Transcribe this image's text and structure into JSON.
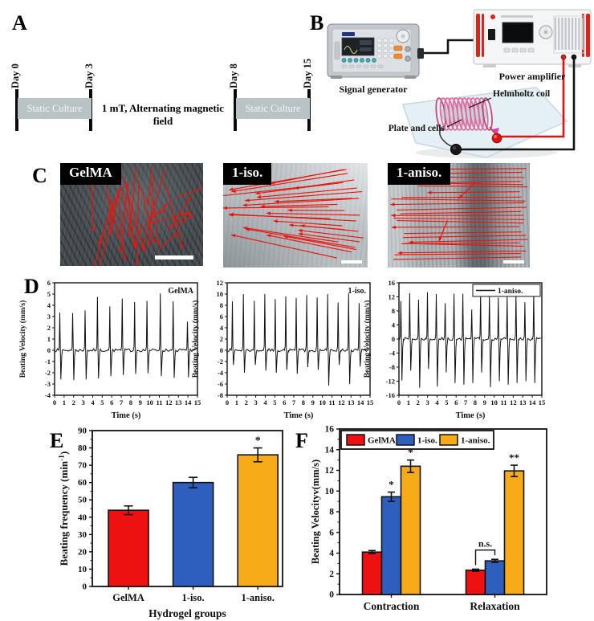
{
  "panel_labels": {
    "a": "A",
    "b": "B",
    "c": "C",
    "d": "D",
    "e": "E",
    "f": "F"
  },
  "panel_a": {
    "days": [
      "Day 0",
      "Day 3",
      "Day 8",
      "Day 15"
    ],
    "segments": [
      {
        "label": "Static Culture"
      },
      {
        "label": "Static Culture"
      }
    ],
    "field_label": "1 mT, Alternating magnetic field",
    "band_color": "#b9c3c6"
  },
  "panel_b": {
    "signal_generator_label": "Signal generator",
    "power_amplifier_label": "Power amplifier",
    "helmholtz_coil_label": "Helmholtz coil",
    "plate_and_cells_label": "Plate and cells",
    "wire_positive_color": "#e01313",
    "wire_negative_color": "#141414"
  },
  "panel_c": {
    "arrow_color": "#e8140c",
    "images": [
      {
        "label": "GelMA",
        "flow_pattern": "scattered"
      },
      {
        "label": "1-iso.",
        "flow_pattern": "diagonal"
      },
      {
        "label": "1-aniso.",
        "flow_pattern": "horizontal"
      }
    ]
  },
  "chart_data": [
    {
      "id": "gelma-trace",
      "type": "line",
      "label": "GelMA",
      "legend": false,
      "xlabel": "Time (s)",
      "ylabel": "Beating Velocity (mm/s)",
      "xlim": [
        0,
        15
      ],
      "xtick_step": 1,
      "ylim": [
        -4,
        6
      ],
      "ytick_step": 1,
      "beats": [
        {
          "t": 0.55,
          "peak": 3.35,
          "trough": -2.6
        },
        {
          "t": 1.9,
          "peak": 3.3,
          "trough": -2.65
        },
        {
          "t": 3.2,
          "peak": 3.55,
          "trough": -2.6
        },
        {
          "t": 4.5,
          "peak": 4.75,
          "trough": -2.5
        },
        {
          "t": 5.8,
          "peak": 3.9,
          "trough": -2.3
        },
        {
          "t": 7.1,
          "peak": 4.6,
          "trough": -2.2
        },
        {
          "t": 8.4,
          "peak": 4.3,
          "trough": -2.1
        },
        {
          "t": 9.7,
          "peak": 4.4,
          "trough": -2.05
        },
        {
          "t": 11.1,
          "peak": 5.05,
          "trough": -2.3
        },
        {
          "t": 12.45,
          "peak": 4.35,
          "trough": -2.45
        },
        {
          "t": 13.95,
          "peak": 2.55,
          "trough": -2.4
        }
      ]
    },
    {
      "id": "iso-trace",
      "type": "line",
      "label": "1-iso.",
      "legend": false,
      "xlabel": "Time (s)",
      "ylabel": "Beating Velocity (mm/s)",
      "xlim": [
        0,
        15
      ],
      "xtick_step": 1,
      "ylim": [
        -8,
        12
      ],
      "ytick_step": 2,
      "beats": [
        {
          "t": 0.55,
          "peak": 8.7,
          "trough": -2.6
        },
        {
          "t": 1.7,
          "peak": 10.0,
          "trough": -4.0
        },
        {
          "t": 2.85,
          "peak": 8.8,
          "trough": -2.6
        },
        {
          "t": 3.95,
          "peak": 10.0,
          "trough": -3.6
        },
        {
          "t": 5.05,
          "peak": 9.1,
          "trough": -4.0
        },
        {
          "t": 6.15,
          "peak": 9.6,
          "trough": -3.5
        },
        {
          "t": 7.25,
          "peak": 9.3,
          "trough": -4.2
        },
        {
          "t": 8.35,
          "peak": 9.8,
          "trough": -3.0
        },
        {
          "t": 9.45,
          "peak": 9.4,
          "trough": -3.5
        },
        {
          "t": 10.55,
          "peak": 10.0,
          "trough": -6.3
        },
        {
          "t": 11.65,
          "peak": 8.5,
          "trough": -2.6
        },
        {
          "t": 12.75,
          "peak": 10.1,
          "trough": -6.0
        },
        {
          "t": 13.85,
          "peak": 8.4,
          "trough": -2.9
        }
      ]
    },
    {
      "id": "aniso-trace",
      "type": "line",
      "label": "1-aniso.",
      "legend": true,
      "xlabel": "Time (s)",
      "ylabel": "Beating Velocity (mm/s)",
      "xlim": [
        0,
        15
      ],
      "xtick_step": 1,
      "ylim": [
        -16,
        16
      ],
      "ytick_step": 4,
      "beats": [
        {
          "t": 0.2,
          "peak": 10.8,
          "trough": -11.8
        },
        {
          "t": 1.13,
          "peak": 13.1,
          "trough": -9.0
        },
        {
          "t": 2.06,
          "peak": 11.2,
          "trough": -13.9
        },
        {
          "t": 2.99,
          "peak": 13.3,
          "trough": -8.5
        },
        {
          "t": 3.92,
          "peak": 12.8,
          "trough": -13.5
        },
        {
          "t": 4.85,
          "peak": 10.2,
          "trough": -9.5
        },
        {
          "t": 5.78,
          "peak": 12.9,
          "trough": -12.5
        },
        {
          "t": 6.71,
          "peak": 12.9,
          "trough": -13.0
        },
        {
          "t": 7.64,
          "peak": 8.4,
          "trough": -12.5
        },
        {
          "t": 8.57,
          "peak": 13.0,
          "trough": -9.5
        },
        {
          "t": 9.5,
          "peak": 12.2,
          "trough": -13.7
        },
        {
          "t": 10.43,
          "peak": 11.8,
          "trough": -12.0
        },
        {
          "t": 11.36,
          "peak": 12.1,
          "trough": -13.0
        },
        {
          "t": 12.29,
          "peak": 12.9,
          "trough": -12.5
        },
        {
          "t": 13.22,
          "peak": 10.5,
          "trough": -12.0
        },
        {
          "t": 14.15,
          "peak": 12.9,
          "trough": -12.5
        }
      ]
    },
    {
      "id": "frequency-bar",
      "type": "bar",
      "categories": [
        "GelMA",
        "1-iso.",
        "1-aniso."
      ],
      "values": [
        44,
        60,
        76
      ],
      "errors": [
        2.5,
        3,
        4
      ],
      "annotations": [
        "",
        "",
        "*"
      ],
      "bar_colors": [
        "#ee1111",
        "#2e5fbf",
        "#f8ab18"
      ],
      "xlabel": "Hydrogel groups",
      "ylabel": "Beating frequency (min⁻¹)",
      "ylim": [
        0,
        90
      ],
      "ytick_step": 10
    },
    {
      "id": "velocity-bar",
      "type": "grouped_bar",
      "categories": [
        "Contraction",
        "Relaxation"
      ],
      "series": [
        {
          "name": "GelMA",
          "color": "#ee1111",
          "values": [
            4.1,
            2.35
          ],
          "errors": [
            0.15,
            0.1
          ]
        },
        {
          "name": "1-iso.",
          "color": "#2e5fbf",
          "values": [
            9.45,
            3.25
          ],
          "errors": [
            0.45,
            0.15
          ]
        },
        {
          "name": "1-aniso.",
          "color": "#f8ab18",
          "values": [
            12.4,
            11.95
          ],
          "errors": [
            0.6,
            0.55
          ]
        }
      ],
      "annotations": [
        [
          "",
          "*",
          "*"
        ],
        [
          "",
          "",
          "**"
        ]
      ],
      "ns_bracket": {
        "group_index": 1,
        "series_indexes": [
          0,
          1
        ],
        "label": "n.s."
      },
      "ylabel": "Beating Velocityv(mm/s)",
      "ylim": [
        0,
        16
      ],
      "ytick_step": 2,
      "legend_position": "top"
    }
  ]
}
